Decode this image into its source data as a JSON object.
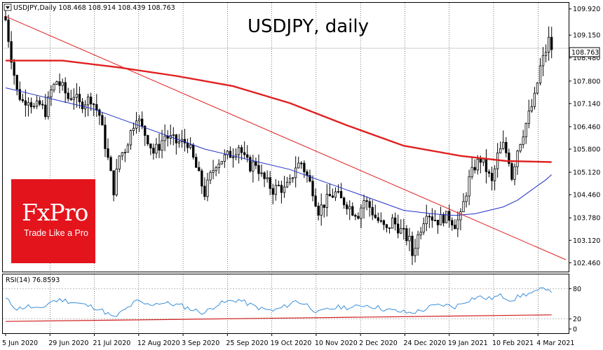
{
  "chart_header": {
    "symbol_line": "USDJPY,Daily  108.468 108.914 108.439 108.763",
    "title": "USDJPY, daily",
    "last_price_tag": "108.763"
  },
  "logo": {
    "brand": "FxPro",
    "tagline": "Trade Like a Pro",
    "bg_color": "#e4141c"
  },
  "rsi_header": "RSI(14) 76.8593",
  "colors": {
    "bull_candle": "#ffffff",
    "bear_candle": "#000000",
    "ma_long": "#e02020",
    "ma_short": "#2030c8",
    "trendline": "#e02020",
    "rsi_line": "#3a8fd9",
    "rsi_ma": "#d02020",
    "grid": "#000000"
  },
  "chart_data": [
    {
      "type": "candlestick",
      "symbol": "USDJPY",
      "timeframe": "Daily",
      "ohlc_last": {
        "open": 108.468,
        "high": 108.914,
        "low": 108.439,
        "close": 108.763
      },
      "ylim": [
        102.2,
        110.1
      ],
      "y_ticks": [
        "109.920",
        "109.150",
        "108.480",
        "107.800",
        "107.140",
        "106.460",
        "105.800",
        "105.120",
        "104.460",
        "103.780",
        "103.120",
        "102.460"
      ],
      "x_ticks": [
        "5 Jun 2020",
        "29 Jun 2020",
        "21 Jul 2020",
        "12 Aug 2020",
        "3 Sep 2020",
        "25 Sep 2020",
        "19 Oct 2020",
        "10 Nov 2020",
        "2 Dec 2020",
        "24 Dec 2020",
        "19 Jan 2021",
        "10 Feb 2021",
        "4 Mar 2021"
      ],
      "close_path": [
        [
          0,
          109.6
        ],
        [
          2,
          108.5
        ],
        [
          4,
          107.5
        ],
        [
          6,
          107.2
        ],
        [
          8,
          107.3
        ],
        [
          10,
          107.0
        ],
        [
          12,
          107.1
        ],
        [
          14,
          106.9
        ],
        [
          16,
          107.5
        ],
        [
          18,
          107.8
        ],
        [
          20,
          107.6
        ],
        [
          22,
          107.3
        ],
        [
          24,
          107.4
        ],
        [
          26,
          107.1
        ],
        [
          28,
          107.2
        ],
        [
          30,
          107.3
        ],
        [
          33,
          106.8
        ],
        [
          36,
          105.5
        ],
        [
          38,
          104.6
        ],
        [
          40,
          105.6
        ],
        [
          42,
          105.8
        ],
        [
          44,
          106.3
        ],
        [
          46,
          106.8
        ],
        [
          48,
          106.4
        ],
        [
          50,
          106.1
        ],
        [
          52,
          105.7
        ],
        [
          54,
          105.9
        ],
        [
          56,
          106.2
        ],
        [
          58,
          106.1
        ],
        [
          60,
          106.0
        ],
        [
          62,
          106.0
        ],
        [
          64,
          106.0
        ],
        [
          66,
          105.5
        ],
        [
          68,
          105.0
        ],
        [
          70,
          104.5
        ],
        [
          72,
          105.0
        ],
        [
          74,
          105.4
        ],
        [
          76,
          105.5
        ],
        [
          78,
          105.6
        ],
        [
          80,
          105.7
        ],
        [
          82,
          105.9
        ],
        [
          84,
          105.5
        ],
        [
          86,
          105.3
        ],
        [
          88,
          105.4
        ],
        [
          90,
          105.0
        ],
        [
          92,
          104.8
        ],
        [
          94,
          104.6
        ],
        [
          96,
          104.7
        ],
        [
          98,
          104.6
        ],
        [
          100,
          104.8
        ],
        [
          102,
          105.3
        ],
        [
          104,
          105.4
        ],
        [
          106,
          105.0
        ],
        [
          108,
          104.6
        ],
        [
          110,
          104.0
        ],
        [
          112,
          104.2
        ],
        [
          114,
          104.4
        ],
        [
          116,
          104.5
        ],
        [
          118,
          104.3
        ],
        [
          120,
          104.2
        ],
        [
          122,
          104.0
        ],
        [
          124,
          103.9
        ],
        [
          126,
          104.3
        ],
        [
          128,
          104.1
        ],
        [
          130,
          103.8
        ],
        [
          132,
          103.6
        ],
        [
          134,
          103.4
        ],
        [
          136,
          103.7
        ],
        [
          138,
          103.5
        ],
        [
          140,
          103.3
        ],
        [
          142,
          103.1
        ],
        [
          143,
          102.7
        ],
        [
          144,
          103.0
        ],
        [
          146,
          103.5
        ],
        [
          148,
          104.0
        ],
        [
          150,
          103.8
        ],
        [
          152,
          103.7
        ],
        [
          154,
          103.8
        ],
        [
          156,
          103.8
        ],
        [
          158,
          103.6
        ],
        [
          160,
          103.8
        ],
        [
          161,
          104.2
        ],
        [
          163,
          104.9
        ],
        [
          165,
          105.3
        ],
        [
          167,
          105.5
        ],
        [
          169,
          105.2
        ],
        [
          171,
          104.8
        ],
        [
          173,
          105.6
        ],
        [
          175,
          105.9
        ],
        [
          177,
          105.5
        ],
        [
          178,
          105.0
        ],
        [
          180,
          105.8
        ],
        [
          182,
          106.3
        ],
        [
          184,
          106.8
        ],
        [
          186,
          107.3
        ],
        [
          188,
          108.2
        ],
        [
          190,
          108.7
        ],
        [
          191,
          109.0
        ],
        [
          192,
          108.76
        ]
      ],
      "ma_long_path": [
        [
          0,
          108.4
        ],
        [
          20,
          108.4
        ],
        [
          40,
          108.2
        ],
        [
          60,
          107.95
        ],
        [
          80,
          107.65
        ],
        [
          100,
          107.15
        ],
        [
          120,
          106.5
        ],
        [
          140,
          105.9
        ],
        [
          160,
          105.6
        ],
        [
          176,
          105.45
        ],
        [
          192,
          105.42
        ]
      ],
      "ma_short_path": [
        [
          0,
          107.6
        ],
        [
          10,
          107.4
        ],
        [
          20,
          107.2
        ],
        [
          30,
          107.0
        ],
        [
          40,
          106.7
        ],
        [
          50,
          106.4
        ],
        [
          60,
          106.1
        ],
        [
          70,
          105.8
        ],
        [
          80,
          105.6
        ],
        [
          90,
          105.4
        ],
        [
          100,
          105.2
        ],
        [
          110,
          104.9
        ],
        [
          120,
          104.6
        ],
        [
          130,
          104.3
        ],
        [
          140,
          104.0
        ],
        [
          150,
          103.9
        ],
        [
          158,
          103.85
        ],
        [
          165,
          103.9
        ],
        [
          170,
          104.0
        ],
        [
          175,
          104.1
        ],
        [
          180,
          104.3
        ],
        [
          185,
          104.6
        ],
        [
          190,
          104.9
        ],
        [
          192,
          105.05
        ]
      ],
      "trendline": [
        [
          0,
          109.7
        ],
        [
          197,
          102.55
        ]
      ]
    },
    {
      "type": "line",
      "indicator": "RSI(14)",
      "last_value": 76.8593,
      "ylim": [
        0,
        100
      ],
      "y_ticks": [
        "80",
        "20",
        "0"
      ],
      "levels": [
        80,
        20
      ],
      "rsi_path": [
        [
          0,
          60
        ],
        [
          4,
          40
        ],
        [
          8,
          45
        ],
        [
          12,
          38
        ],
        [
          16,
          55
        ],
        [
          20,
          58
        ],
        [
          26,
          50
        ],
        [
          32,
          42
        ],
        [
          36,
          30
        ],
        [
          38,
          22
        ],
        [
          42,
          38
        ],
        [
          46,
          55
        ],
        [
          50,
          48
        ],
        [
          54,
          52
        ],
        [
          58,
          50
        ],
        [
          62,
          46
        ],
        [
          66,
          38
        ],
        [
          70,
          32
        ],
        [
          74,
          48
        ],
        [
          78,
          54
        ],
        [
          82,
          58
        ],
        [
          86,
          48
        ],
        [
          90,
          40
        ],
        [
          94,
          36
        ],
        [
          98,
          44
        ],
        [
          102,
          56
        ],
        [
          106,
          48
        ],
        [
          110,
          32
        ],
        [
          114,
          40
        ],
        [
          118,
          44
        ],
        [
          122,
          42
        ],
        [
          126,
          48
        ],
        [
          130,
          44
        ],
        [
          134,
          38
        ],
        [
          138,
          35
        ],
        [
          142,
          32
        ],
        [
          146,
          36
        ],
        [
          150,
          45
        ],
        [
          154,
          48
        ],
        [
          158,
          44
        ],
        [
          162,
          56
        ],
        [
          166,
          64
        ],
        [
          170,
          60
        ],
        [
          174,
          66
        ],
        [
          178,
          58
        ],
        [
          182,
          68
        ],
        [
          186,
          72
        ],
        [
          190,
          82
        ],
        [
          192,
          77
        ]
      ],
      "rsi_ma_path": [
        [
          0,
          15
        ],
        [
          192,
          28
        ]
      ]
    }
  ]
}
